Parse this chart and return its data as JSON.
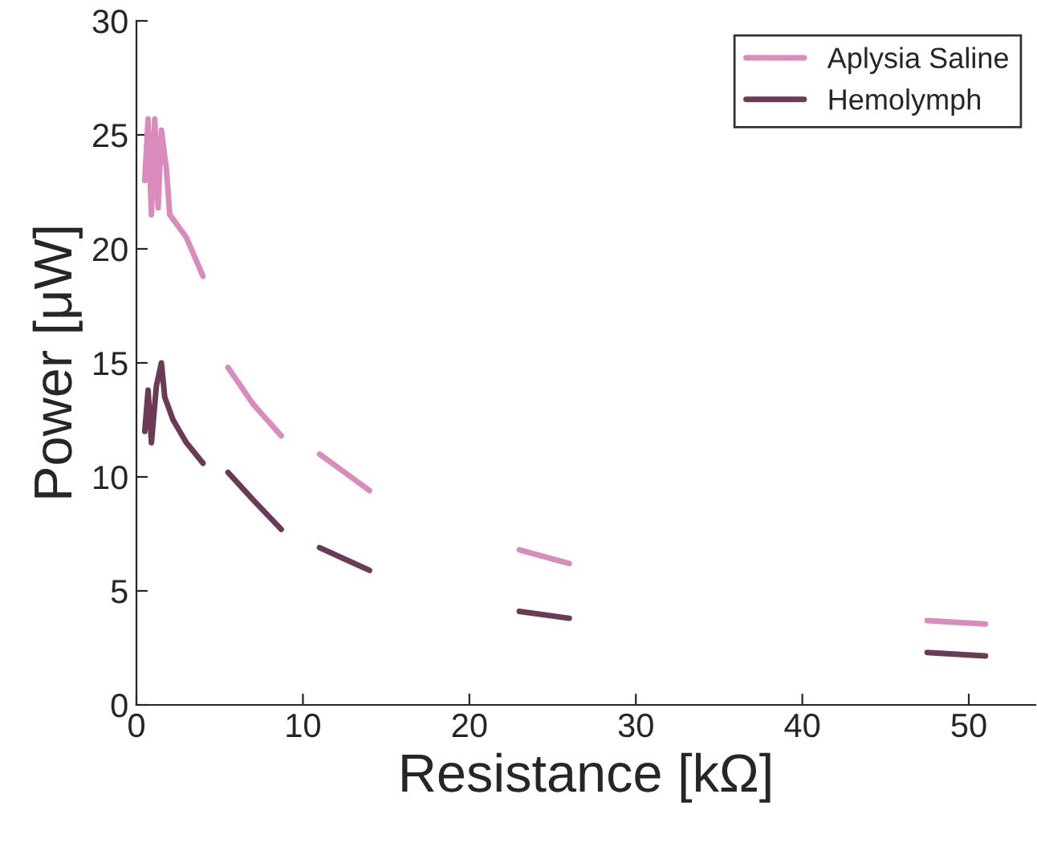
{
  "chart_data": {
    "type": "line",
    "xlabel": "Resistance [kΩ]",
    "ylabel": "Power [μW]",
    "xlim": [
      0,
      54
    ],
    "xticks": [
      0,
      10,
      20,
      30,
      40,
      50
    ],
    "ylim": [
      0,
      30
    ],
    "yticks": [
      0,
      5,
      10,
      15,
      20,
      25,
      30
    ],
    "grid": false,
    "legend": "top right",
    "marker": "none",
    "line_style": "solid",
    "series": [
      {
        "name": "Aplysia Saline",
        "color": "#d98cbb",
        "x": [
          0.5,
          0.7,
          0.9,
          1.1,
          1.3,
          1.5,
          1.8,
          2.0,
          3.0,
          4.0,
          4.5,
          5.5,
          7.0,
          8.7,
          9.5,
          11.0,
          12.5,
          14.0,
          18,
          23.0,
          26.0,
          35,
          47.5,
          51.0
        ],
        "values": [
          23,
          25.7,
          21.5,
          25.7,
          21.8,
          25.2,
          23.5,
          21.5,
          20.5,
          18.8,
          null,
          14.8,
          13.2,
          11.8,
          null,
          11.0,
          10.2,
          9.4,
          null,
          6.8,
          6.2,
          null,
          3.7,
          3.55
        ]
      },
      {
        "name": "Hemolymph",
        "color": "#6b3a55",
        "x": [
          0.5,
          0.7,
          0.9,
          1.2,
          1.5,
          1.7,
          2.2,
          3.0,
          4.0,
          4.5,
          5.5,
          7.0,
          8.7,
          9.5,
          11.0,
          12.5,
          14.0,
          18,
          23.0,
          26.0,
          35,
          47.5,
          51.0
        ],
        "values": [
          12,
          13.8,
          11.5,
          14,
          15,
          13.5,
          12.5,
          11.5,
          10.6,
          null,
          10.2,
          9.0,
          7.7,
          null,
          6.9,
          6.4,
          5.9,
          null,
          4.1,
          3.8,
          null,
          2.3,
          2.15
        ]
      }
    ]
  }
}
